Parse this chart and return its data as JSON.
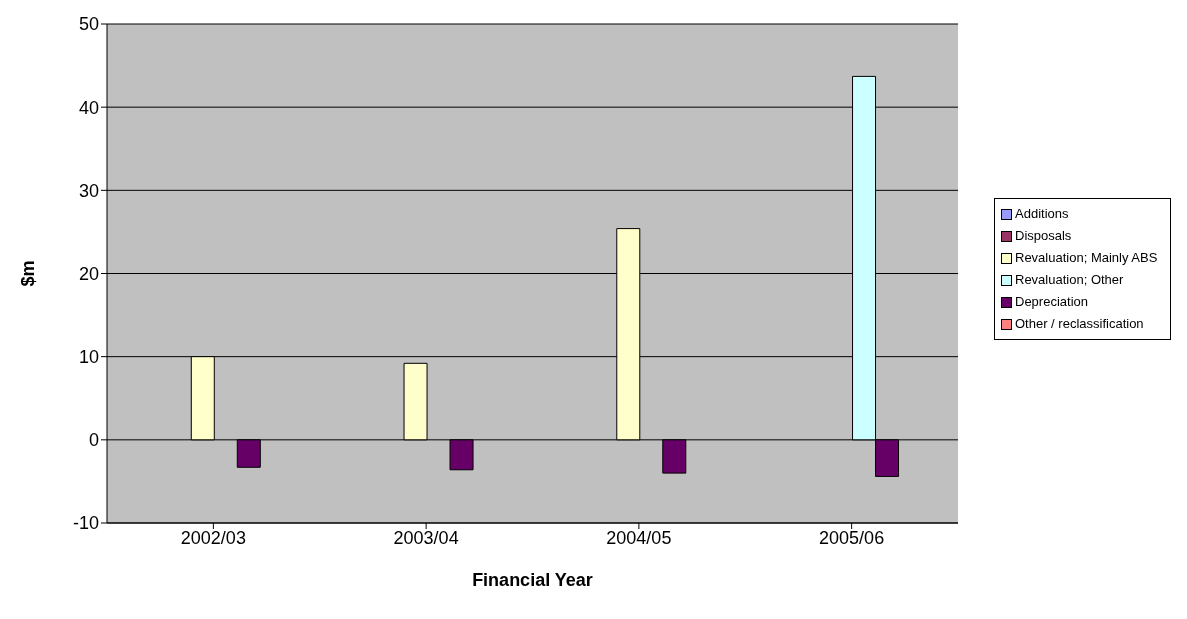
{
  "chart_data": {
    "type": "bar",
    "xlabel": "Financial Year",
    "ylabel": "$m",
    "categories": [
      "2002/03",
      "2003/04",
      "2004/05",
      "2005/06"
    ],
    "series": [
      {
        "name": "Additions",
        "color": "#9999ff",
        "values": [
          null,
          null,
          null,
          null
        ]
      },
      {
        "name": "Disposals",
        "color": "#993366",
        "values": [
          null,
          null,
          null,
          null
        ]
      },
      {
        "name": "Revaluation; Mainly ABS",
        "color": "#ffffcc",
        "values": [
          10.0,
          9.2,
          25.4,
          null
        ]
      },
      {
        "name": "Revaluation; Other",
        "color": "#ccffff",
        "values": [
          null,
          null,
          null,
          43.7
        ]
      },
      {
        "name": "Depreciation",
        "color": "#660066",
        "values": [
          -3.3,
          -3.6,
          -4.0,
          -4.4
        ]
      },
      {
        "name": "Other / reclassification",
        "color": "#ff8080",
        "values": [
          null,
          null,
          null,
          null
        ]
      }
    ],
    "ylim": [
      -10,
      50
    ],
    "yticks": [
      -10,
      0,
      10,
      20,
      30,
      40,
      50
    ],
    "grid": "y",
    "legend": "right"
  }
}
